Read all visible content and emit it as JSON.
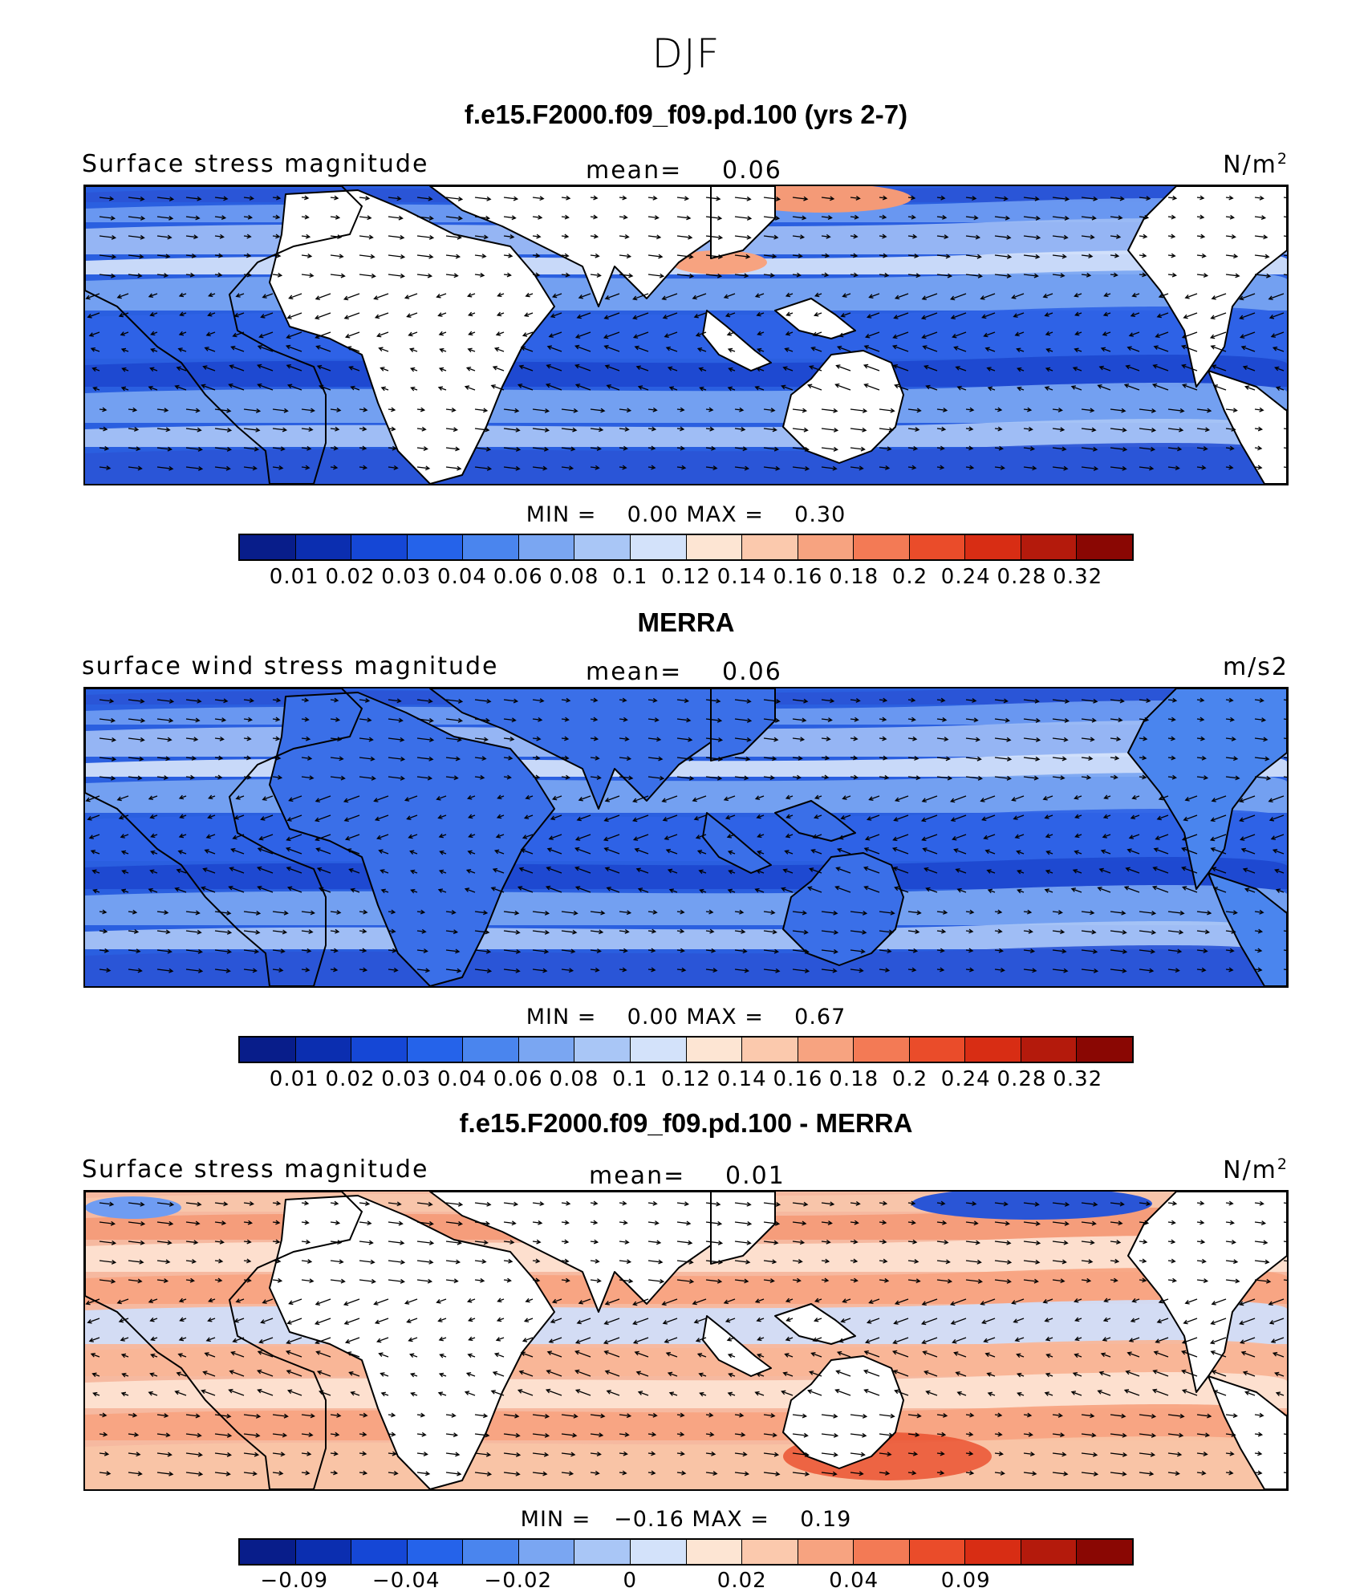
{
  "figure_title": "DJF",
  "palette_centered": [
    "#081d8a",
    "#0b2eb0",
    "#1547d6",
    "#2563ea",
    "#4a85ee",
    "#7aa6f2",
    "#a9c6f6",
    "#d3e2fa",
    "#fde5d3",
    "#fbc9ad",
    "#f7a380",
    "#f37a55",
    "#ea4c2a",
    "#d82d14",
    "#b41a0c",
    "#8a0703"
  ],
  "panels": [
    {
      "title": "f.e15.F2000.f09_f09.pd.100 (yrs 2-7)",
      "label": "Surface stress magnitude",
      "mean_label": "mean=",
      "mean_value": "0.06",
      "units": "N/m",
      "units_sup": "2",
      "min_max": "MIN =    0.00 MAX =    0.30",
      "ticks": [
        "0.01",
        "0.02",
        "0.03",
        "0.04",
        "0.06",
        "0.08",
        "0.1",
        "0.12",
        "0.14",
        "0.16",
        "0.18",
        "0.2",
        "0.24",
        "0.28",
        "0.32"
      ],
      "land_fill": "white",
      "ocean_color": "#2a5fe0"
    },
    {
      "title": "MERRA",
      "label": "surface wind stress magnitude",
      "mean_label": "mean=",
      "mean_value": "0.06",
      "units": "m/s2",
      "units_sup": "",
      "min_max": "MIN =    0.00 MAX =    0.67",
      "ticks": [
        "0.01",
        "0.02",
        "0.03",
        "0.04",
        "0.06",
        "0.08",
        "0.1",
        "0.12",
        "0.14",
        "0.16",
        "0.18",
        "0.2",
        "0.24",
        "0.28",
        "0.32"
      ],
      "land_fill": "data",
      "ocean_color": "#2a5fe0"
    },
    {
      "title": "f.e15.F2000.f09_f09.pd.100 - MERRA",
      "label": "Surface stress magnitude",
      "mean_label": "mean=",
      "mean_value": "0.01",
      "units": "N/m",
      "units_sup": "2",
      "min_max": "MIN =   −0.16 MAX =    0.19",
      "ticks": [
        "−0.09",
        "",
        "−0.04",
        "",
        "−0.02",
        "",
        "0",
        "",
        "0.02",
        "",
        "0.04",
        "",
        "0.09",
        "",
        ""
      ],
      "land_fill": "white",
      "ocean_color": "#f6b9a0"
    }
  ]
}
